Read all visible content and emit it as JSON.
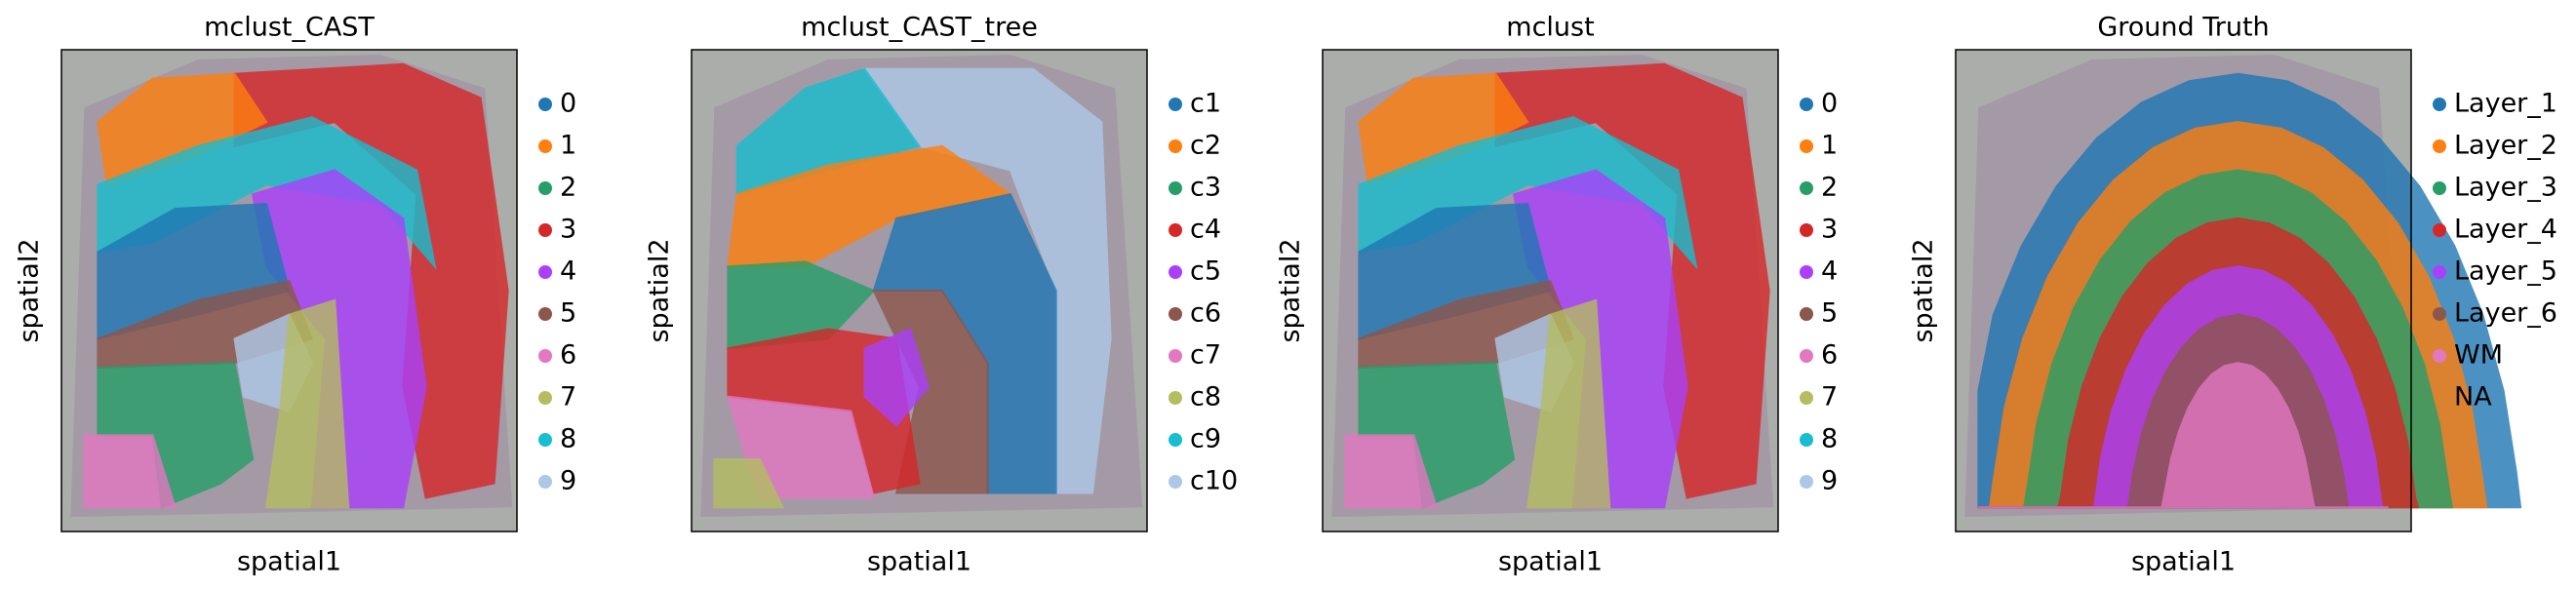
{
  "panels": [
    {
      "title": "mclust_CAST",
      "xlabel": "spatial1",
      "ylabel": "spatial2",
      "legend": [
        {
          "label": "0",
          "color": "#1f77b4"
        },
        {
          "label": "1",
          "color": "#ff7f0e"
        },
        {
          "label": "2",
          "color": "#279e68"
        },
        {
          "label": "3",
          "color": "#d62728"
        },
        {
          "label": "4",
          "color": "#aa40fc"
        },
        {
          "label": "5",
          "color": "#8c564b"
        },
        {
          "label": "6",
          "color": "#e377c2"
        },
        {
          "label": "7",
          "color": "#b5bd61"
        },
        {
          "label": "8",
          "color": "#17becf"
        },
        {
          "label": "9",
          "color": "#aec7e8"
        }
      ]
    },
    {
      "title": "mclust_CAST_tree",
      "xlabel": "spatial1",
      "ylabel": "spatial2",
      "legend": [
        {
          "label": "c1",
          "color": "#1f77b4"
        },
        {
          "label": "c2",
          "color": "#ff7f0e"
        },
        {
          "label": "c3",
          "color": "#279e68"
        },
        {
          "label": "c4",
          "color": "#d62728"
        },
        {
          "label": "c5",
          "color": "#aa40fc"
        },
        {
          "label": "c6",
          "color": "#8c564b"
        },
        {
          "label": "c7",
          "color": "#e377c2"
        },
        {
          "label": "c8",
          "color": "#b5bd61"
        },
        {
          "label": "c9",
          "color": "#17becf"
        },
        {
          "label": "c10",
          "color": "#aec7e8"
        }
      ]
    },
    {
      "title": "mclust",
      "xlabel": "spatial1",
      "ylabel": "spatial2",
      "legend": [
        {
          "label": "0",
          "color": "#1f77b4"
        },
        {
          "label": "1",
          "color": "#ff7f0e"
        },
        {
          "label": "2",
          "color": "#279e68"
        },
        {
          "label": "3",
          "color": "#d62728"
        },
        {
          "label": "4",
          "color": "#aa40fc"
        },
        {
          "label": "5",
          "color": "#8c564b"
        },
        {
          "label": "6",
          "color": "#e377c2"
        },
        {
          "label": "7",
          "color": "#b5bd61"
        },
        {
          "label": "8",
          "color": "#17becf"
        },
        {
          "label": "9",
          "color": "#aec7e8"
        }
      ]
    },
    {
      "title": "Ground Truth",
      "xlabel": "spatial1",
      "ylabel": "spatial2",
      "legend": [
        {
          "label": "Layer_1",
          "color": "#1f77b4"
        },
        {
          "label": "Layer_2",
          "color": "#ff7f0e"
        },
        {
          "label": "Layer_3",
          "color": "#279e68"
        },
        {
          "label": "Layer_4",
          "color": "#d62728"
        },
        {
          "label": "Layer_5",
          "color": "#aa40fc"
        },
        {
          "label": "Layer_6",
          "color": "#8c564b"
        },
        {
          "label": "WM",
          "color": "#e377c2"
        },
        {
          "label": "NA"
        }
      ]
    }
  ]
}
